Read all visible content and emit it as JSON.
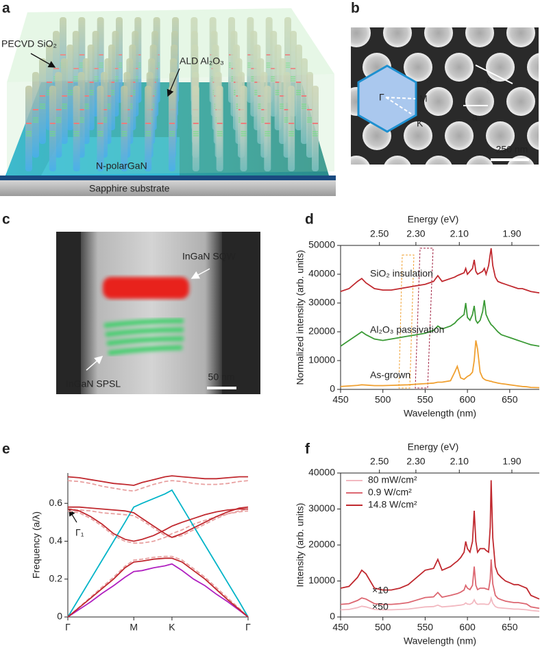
{
  "panel_a": {
    "label": "a",
    "pecvd": "PECVD SiO₂",
    "ald": "ALD Al₂O₃",
    "gan": "N-polarGaN",
    "substrate": "Sapphire substrate"
  },
  "panel_b": {
    "label": "b",
    "lattice_1": "a",
    "lattice_2": "a",
    "gamma": "Γ",
    "m": "M",
    "k": "K",
    "scale": "250 nm"
  },
  "panel_c": {
    "label": "c",
    "sqw": "InGaN SQW",
    "spsl": "InGaN SPSL",
    "scale": "50 nm"
  },
  "chart_data": [
    {
      "type": "line",
      "panel_label": "d",
      "x_label": "Wavelength (nm)",
      "y_label": "Normalized intensity (arb. units)",
      "top_axis_label": "Energy (eV)",
      "top_ticks": [
        {
          "value": 2.5,
          "label": "2.50"
        },
        {
          "value": 2.3,
          "label": "2.30"
        },
        {
          "value": 2.1,
          "label": "2.10"
        },
        {
          "value": 1.9,
          "label": "1.90"
        }
      ],
      "xlim": [
        450,
        685
      ],
      "xticks": [
        450,
        500,
        550,
        600,
        650
      ],
      "ylim": [
        0,
        50000
      ],
      "yticks": [
        0,
        10000,
        20000,
        30000,
        40000,
        50000
      ],
      "legend": "inline",
      "x": [
        450,
        460,
        470,
        475,
        480,
        490,
        500,
        510,
        520,
        530,
        540,
        550,
        560,
        565,
        570,
        580,
        585,
        588,
        592,
        596,
        598,
        600,
        603,
        606,
        608,
        610,
        612,
        615,
        618,
        620,
        622,
        625,
        627,
        628,
        630,
        633,
        636,
        640,
        645,
        650,
        655,
        660,
        665,
        670,
        675,
        685
      ],
      "series": [
        {
          "name": "SiO₂ insulation",
          "color": "#c0282e",
          "values": [
            34000,
            35000,
            37500,
            38500,
            37000,
            35000,
            34500,
            34500,
            35000,
            35500,
            36000,
            36500,
            37500,
            39500,
            37500,
            38500,
            39000,
            39500,
            40000,
            40500,
            42000,
            40000,
            41000,
            42000,
            45000,
            41000,
            40000,
            40500,
            41000,
            42000,
            40000,
            43000,
            47000,
            49000,
            43000,
            39000,
            37500,
            37000,
            36500,
            36000,
            35500,
            35000,
            35000,
            34500,
            34000,
            33500
          ]
        },
        {
          "name": "Al₂O₃ passivation",
          "color": "#3a9a35",
          "values": [
            15000,
            17000,
            19000,
            20000,
            19000,
            17500,
            17000,
            17500,
            18000,
            18500,
            19000,
            19500,
            20500,
            22000,
            21000,
            22000,
            23000,
            24000,
            25000,
            26000,
            30000,
            25000,
            24000,
            26000,
            29000,
            24000,
            23000,
            24000,
            27000,
            31000,
            26000,
            24000,
            23000,
            22500,
            22000,
            21000,
            20000,
            19000,
            18500,
            18000,
            17500,
            17000,
            16500,
            16000,
            15500,
            15000
          ]
        },
        {
          "name": "As-grown",
          "color": "#f0a030",
          "values": [
            1000,
            1200,
            1400,
            1600,
            1500,
            1300,
            1300,
            1400,
            1500,
            1600,
            1800,
            2000,
            2200,
            2500,
            2500,
            3000,
            6000,
            8000,
            4000,
            3500,
            4000,
            4500,
            5000,
            6000,
            10000,
            17000,
            14000,
            6000,
            4000,
            3500,
            3200,
            3000,
            2800,
            2800,
            2600,
            2400,
            2200,
            2000,
            1800,
            1600,
            1400,
            1200,
            1000,
            900,
            700,
            600
          ]
        }
      ]
    },
    {
      "type": "line",
      "panel_label": "e",
      "y_label": "Frequency (a/λ)",
      "annotations": [
        "Γ₁"
      ],
      "xlim": [
        0,
        1.577
      ],
      "xticks": [
        {
          "value": 0,
          "label": "Γ"
        },
        {
          "value": 0.577,
          "label": "M"
        },
        {
          "value": 0.911,
          "label": "K"
        },
        {
          "value": 1.577,
          "label": "Γ"
        }
      ],
      "ylim": [
        0,
        0.76
      ],
      "yticks": [
        0,
        0.2,
        0.4,
        0.6
      ],
      "x": [
        0,
        0.1,
        0.2,
        0.3,
        0.4,
        0.5,
        0.577,
        0.65,
        0.75,
        0.85,
        0.911,
        1.0,
        1.1,
        1.2,
        1.3,
        1.4,
        1.5,
        1.577
      ],
      "series": [
        {
          "color": "#e8a0a0",
          "dash": true,
          "values": [
            0.56,
            0.55,
            0.52,
            0.48,
            0.43,
            0.4,
            0.39,
            0.39,
            0.4,
            0.42,
            0.44,
            0.46,
            0.49,
            0.51,
            0.53,
            0.545,
            0.555,
            0.56
          ]
        },
        {
          "color": "#e8a0a0",
          "dash": true,
          "values": [
            0.57,
            0.565,
            0.56,
            0.55,
            0.545,
            0.54,
            0.535,
            0.51,
            0.47,
            0.43,
            0.42,
            0.43,
            0.46,
            0.49,
            0.52,
            0.545,
            0.56,
            0.57
          ]
        },
        {
          "color": "#e8a0a0",
          "dash": true,
          "values": [
            0.72,
            0.715,
            0.705,
            0.69,
            0.68,
            0.67,
            0.665,
            0.68,
            0.7,
            0.715,
            0.72,
            0.715,
            0.705,
            0.7,
            0.7,
            0.705,
            0.715,
            0.72
          ]
        },
        {
          "color": "#e8a0a0",
          "dash": true,
          "values": [
            0,
            0.052,
            0.105,
            0.158,
            0.21,
            0.268,
            0.3,
            0.305,
            0.315,
            0.32,
            0.32,
            0.3,
            0.255,
            0.21,
            0.155,
            0.1,
            0.045,
            0
          ]
        },
        {
          "color": "#00b4c8",
          "values": [
            0,
            0.1,
            0.2,
            0.3,
            0.4,
            0.5,
            0.58,
            0.6,
            0.625,
            0.65,
            0.67,
            0.58,
            0.48,
            0.38,
            0.28,
            0.18,
            0.08,
            0
          ]
        },
        {
          "color": "#b020c0",
          "values": [
            0,
            0.04,
            0.08,
            0.125,
            0.165,
            0.21,
            0.24,
            0.245,
            0.26,
            0.27,
            0.28,
            0.245,
            0.2,
            0.165,
            0.12,
            0.08,
            0.035,
            0
          ]
        },
        {
          "color": "#c0282e",
          "values": [
            0,
            0.05,
            0.1,
            0.15,
            0.2,
            0.26,
            0.29,
            0.295,
            0.305,
            0.31,
            0.31,
            0.29,
            0.245,
            0.2,
            0.145,
            0.09,
            0.04,
            0
          ]
        },
        {
          "color": "#c0282e",
          "values": [
            0.57,
            0.56,
            0.53,
            0.49,
            0.44,
            0.41,
            0.4,
            0.41,
            0.43,
            0.46,
            0.48,
            0.5,
            0.52,
            0.54,
            0.555,
            0.565,
            0.57,
            0.57
          ]
        },
        {
          "color": "#c0282e",
          "values": [
            0.58,
            0.58,
            0.575,
            0.57,
            0.565,
            0.56,
            0.55,
            0.52,
            0.48,
            0.44,
            0.42,
            0.44,
            0.47,
            0.5,
            0.53,
            0.555,
            0.575,
            0.58
          ]
        },
        {
          "color": "#c0282e",
          "values": [
            0.74,
            0.735,
            0.725,
            0.715,
            0.705,
            0.7,
            0.695,
            0.71,
            0.725,
            0.74,
            0.745,
            0.74,
            0.735,
            0.73,
            0.73,
            0.735,
            0.74,
            0.74
          ]
        }
      ]
    },
    {
      "type": "line",
      "panel_label": "f",
      "x_label": "Wavelength (nm)",
      "y_label": "Intensity (arb. units)",
      "top_axis_label": "Energy (eV)",
      "top_ticks": [
        {
          "value": 2.5,
          "label": "2.50"
        },
        {
          "value": 2.3,
          "label": "2.30"
        },
        {
          "value": 2.1,
          "label": "2.10"
        },
        {
          "value": 1.9,
          "label": "1.90"
        }
      ],
      "xlim": [
        450,
        685
      ],
      "xticks": [
        450,
        500,
        550,
        600,
        650
      ],
      "ylim": [
        0,
        40000
      ],
      "yticks": [
        0,
        10000,
        20000,
        30000,
        40000
      ],
      "legend": "upper left",
      "annotations": [
        "×10",
        "×50"
      ],
      "x": [
        450,
        460,
        470,
        475,
        480,
        490,
        500,
        510,
        520,
        530,
        540,
        550,
        560,
        565,
        570,
        580,
        585,
        588,
        592,
        596,
        598,
        600,
        603,
        606,
        608,
        610,
        612,
        615,
        618,
        620,
        622,
        625,
        627,
        628,
        630,
        633,
        636,
        640,
        645,
        650,
        655,
        660,
        665,
        670,
        675,
        685
      ],
      "series": [
        {
          "name": "80 mW/cm²",
          "color": "#f2b8c0",
          "values": [
            2000,
            2100,
            2600,
            3000,
            2800,
            2100,
            2000,
            2000,
            2100,
            2200,
            2500,
            2800,
            2900,
            3300,
            2800,
            3000,
            3100,
            3200,
            3300,
            3500,
            3900,
            3600,
            3500,
            3900,
            4800,
            3900,
            3500,
            3600,
            3600,
            3600,
            3500,
            3500,
            4200,
            5200,
            3800,
            2900,
            2600,
            2500,
            2400,
            2300,
            2200,
            2200,
            2100,
            2000,
            1800,
            1600
          ]
        },
        {
          "name": "0.9 W/cm²",
          "color": "#dc6670",
          "values": [
            3500,
            3700,
            4600,
            5300,
            5000,
            3700,
            3500,
            3500,
            3700,
            4000,
            4700,
            5400,
            5600,
            6800,
            5500,
            6000,
            6300,
            6500,
            6900,
            7500,
            8800,
            8000,
            7600,
            8800,
            14000,
            8800,
            7600,
            8000,
            8000,
            8000,
            7800,
            7600,
            10500,
            16000,
            9200,
            6000,
            5200,
            4800,
            4400,
            4200,
            4000,
            4000,
            3800,
            3600,
            2800,
            2400
          ]
        },
        {
          "name": "14.8 W/cm²",
          "color": "#c0282e",
          "values": [
            8000,
            8500,
            11000,
            13000,
            12000,
            8000,
            7500,
            7500,
            8000,
            9000,
            11000,
            13000,
            13500,
            16000,
            13000,
            14000,
            15000,
            15500,
            16500,
            18000,
            21000,
            19000,
            18000,
            21000,
            29500,
            21000,
            18000,
            19000,
            19000,
            19000,
            18500,
            18000,
            25000,
            38000,
            22000,
            14000,
            12000,
            11000,
            10000,
            9500,
            9000,
            9000,
            8500,
            8000,
            6000,
            5000
          ]
        }
      ]
    }
  ]
}
